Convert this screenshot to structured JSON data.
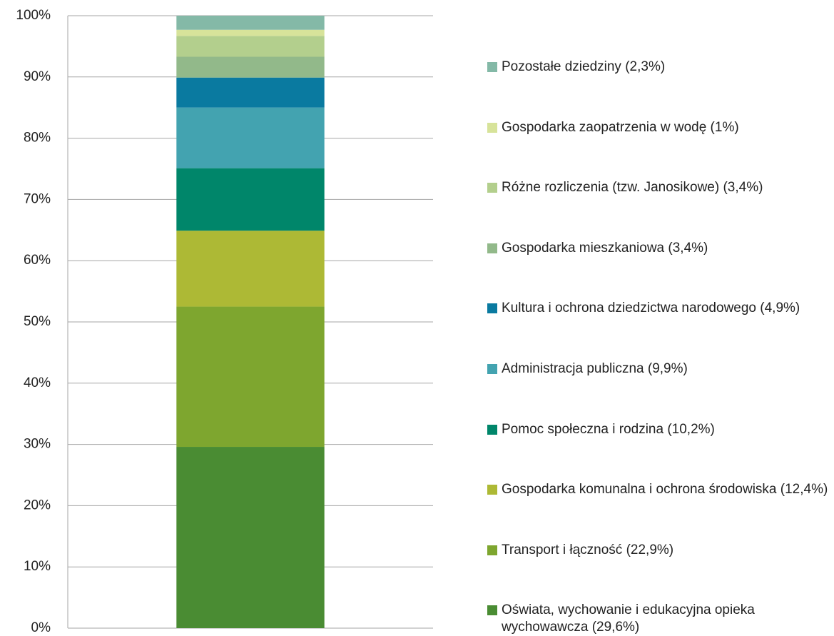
{
  "chart_data": {
    "type": "stacked_bar",
    "categories": [
      null
    ],
    "series": [
      {
        "name": "Oświata, wychowanie i edukacyjna opieka wychowawcza (29,6%)",
        "color": "#4a8c33",
        "values": [
          29.6
        ]
      },
      {
        "name": "Transport i łączność (22,9%)",
        "color": "#7ea62f",
        "values": [
          22.9
        ]
      },
      {
        "name": "Gospodarka komunalna i ochrona środowiska (12,4%)",
        "color": "#adb935",
        "values": [
          12.4
        ]
      },
      {
        "name": "Pomoc społeczna i rodzina (10,2%)",
        "color": "#00866a",
        "values": [
          10.2
        ]
      },
      {
        "name": "Administracja publiczna (9,9%)",
        "color": "#43a3b0",
        "values": [
          9.9
        ]
      },
      {
        "name": "Kultura i ochrona dziedzictwa narodowego (4,9%)",
        "color": "#0a7aa0",
        "values": [
          4.9
        ]
      },
      {
        "name": "Gospodarka mieszkaniowa (3,4%)",
        "color": "#92b98a",
        "values": [
          3.4
        ]
      },
      {
        "name": "Różne rozliczenia (tzw. Janosikowe) (3,4%)",
        "color": "#b3cf8d",
        "values": [
          3.4
        ]
      },
      {
        "name": "Gospodarka zaopatrzenia w wodę (1%)",
        "color": "#d7e39a",
        "values": [
          1
        ]
      },
      {
        "name": "Pozostałe dziedziny (2,3%)",
        "color": "#84b9a7",
        "values": [
          2.3
        ]
      }
    ],
    "ylim": [
      0,
      100
    ],
    "yticks": [
      {
        "value": 0,
        "label": "0%"
      },
      {
        "value": 10,
        "label": "10%"
      },
      {
        "value": 20,
        "label": "20%"
      },
      {
        "value": 30,
        "label": "30%"
      },
      {
        "value": 40,
        "label": "40%"
      },
      {
        "value": 50,
        "label": "50%"
      },
      {
        "value": 60,
        "label": "60%"
      },
      {
        "value": 70,
        "label": "70%"
      },
      {
        "value": 80,
        "label": "80%"
      },
      {
        "value": 90,
        "label": "90%"
      },
      {
        "value": 100,
        "label": "100%"
      }
    ],
    "grid": true,
    "legend": "right"
  }
}
